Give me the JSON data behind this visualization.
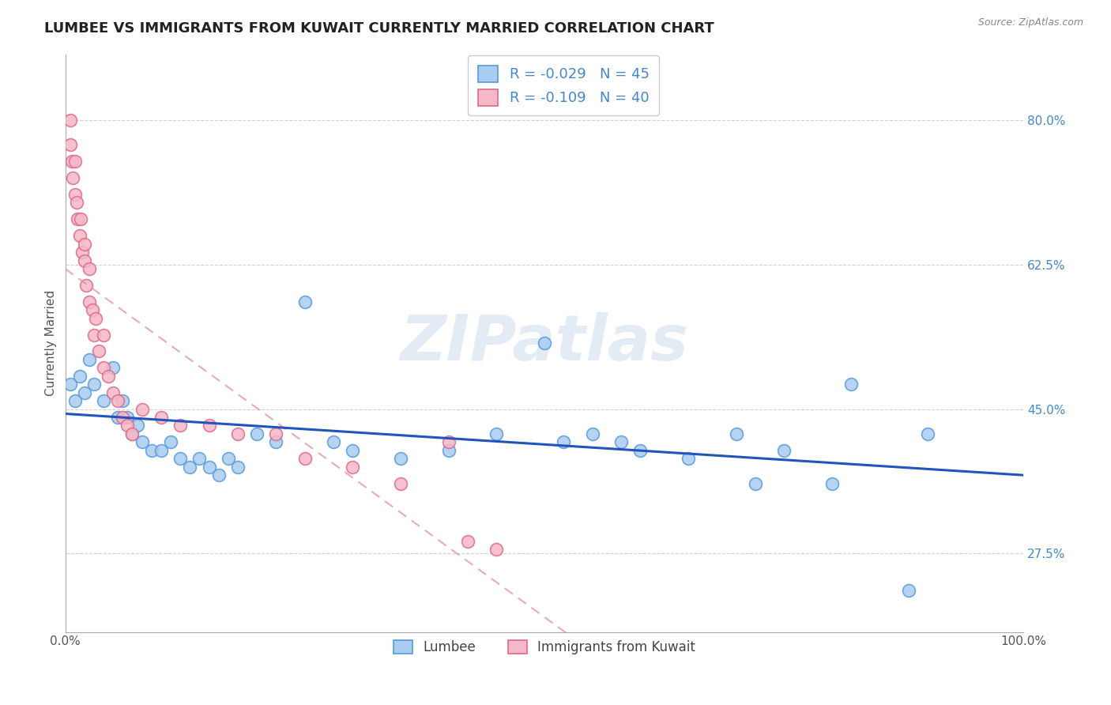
{
  "title": "LUMBEE VS IMMIGRANTS FROM KUWAIT CURRENTLY MARRIED CORRELATION CHART",
  "source": "Source: ZipAtlas.com",
  "ylabel": "Currently Married",
  "legend_label1": "Lumbee",
  "legend_label2": "Immigrants from Kuwait",
  "R1": -0.029,
  "N1": 45,
  "R2": -0.109,
  "N2": 40,
  "color1": "#aaccf0",
  "color2": "#f5b8c8",
  "edge_color1": "#5599dd",
  "edge_color2": "#e06888",
  "line_color1": "#2255bb",
  "line_color2": "#dd8899",
  "background": "#ffffff",
  "grid_color": "#cccccc",
  "ytick_color": "#4488cc",
  "xlim": [
    0.0,
    1.0
  ],
  "ylim": [
    0.18,
    0.88
  ],
  "yticks": [
    0.275,
    0.45,
    0.625,
    0.8
  ],
  "ytick_labels": [
    "27.5%",
    "45.0%",
    "62.5%",
    "80.0%"
  ],
  "xticks": [
    0.0,
    1.0
  ],
  "xtick_labels": [
    "0.0%",
    "100.0%"
  ],
  "lumbee_x": [
    0.005,
    0.01,
    0.015,
    0.02,
    0.025,
    0.03,
    0.04,
    0.05,
    0.055,
    0.06,
    0.065,
    0.07,
    0.075,
    0.08,
    0.09,
    0.1,
    0.11,
    0.12,
    0.13,
    0.14,
    0.15,
    0.16,
    0.17,
    0.18,
    0.2,
    0.22,
    0.25,
    0.28,
    0.3,
    0.35,
    0.4,
    0.45,
    0.5,
    0.52,
    0.55,
    0.58,
    0.6,
    0.65,
    0.7,
    0.72,
    0.75,
    0.8,
    0.82,
    0.88,
    0.9
  ],
  "lumbee_y": [
    0.48,
    0.46,
    0.49,
    0.47,
    0.51,
    0.48,
    0.46,
    0.5,
    0.44,
    0.46,
    0.44,
    0.42,
    0.43,
    0.41,
    0.4,
    0.4,
    0.41,
    0.39,
    0.38,
    0.39,
    0.38,
    0.37,
    0.39,
    0.38,
    0.42,
    0.41,
    0.58,
    0.41,
    0.4,
    0.39,
    0.4,
    0.42,
    0.53,
    0.41,
    0.42,
    0.41,
    0.4,
    0.39,
    0.42,
    0.36,
    0.4,
    0.36,
    0.48,
    0.23,
    0.42
  ],
  "kuwait_x": [
    0.005,
    0.005,
    0.007,
    0.008,
    0.01,
    0.01,
    0.012,
    0.013,
    0.015,
    0.016,
    0.018,
    0.02,
    0.02,
    0.022,
    0.025,
    0.025,
    0.028,
    0.03,
    0.032,
    0.035,
    0.04,
    0.04,
    0.045,
    0.05,
    0.055,
    0.06,
    0.065,
    0.07,
    0.08,
    0.1,
    0.12,
    0.15,
    0.18,
    0.22,
    0.25,
    0.3,
    0.35,
    0.4,
    0.42,
    0.45
  ],
  "kuwait_y": [
    0.8,
    0.77,
    0.75,
    0.73,
    0.71,
    0.75,
    0.7,
    0.68,
    0.66,
    0.68,
    0.64,
    0.63,
    0.65,
    0.6,
    0.58,
    0.62,
    0.57,
    0.54,
    0.56,
    0.52,
    0.5,
    0.54,
    0.49,
    0.47,
    0.46,
    0.44,
    0.43,
    0.42,
    0.45,
    0.44,
    0.43,
    0.43,
    0.42,
    0.42,
    0.39,
    0.38,
    0.36,
    0.41,
    0.29,
    0.28
  ],
  "watermark": "ZIPatlas",
  "title_fontsize": 13,
  "axis_fontsize": 11,
  "tick_fontsize": 11,
  "marker_size": 130
}
